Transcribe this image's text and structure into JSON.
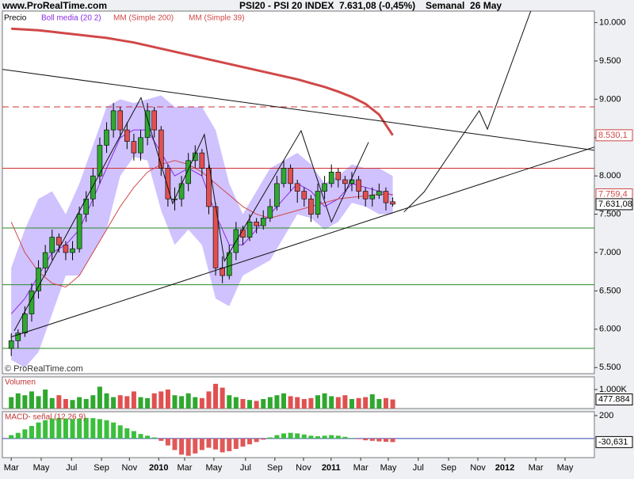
{
  "chart_data": [
    {
      "type": "candlestick",
      "site": "www.ProRealTime.com",
      "title": "PSI20 - PSI 20 INDEX",
      "quote": "7.631,08 (-0,45%)",
      "period": "Semanal  26 May",
      "watermark": "© ProRealTime.com",
      "xlim": [
        -2.6,
        171.2
      ],
      "ylim": [
        5.42,
        10.15
      ],
      "yticks": [
        {
          "value": 10,
          "label": "10.000"
        },
        {
          "value": 9.5,
          "label": "9.500"
        },
        {
          "value": 9,
          "label": "9.000"
        },
        {
          "value": 8.5,
          "label": "8.500"
        },
        {
          "value": 8,
          "label": "8.000"
        },
        {
          "value": 7.5,
          "label": "7.500"
        },
        {
          "value": 7,
          "label": "7.000"
        },
        {
          "value": 6.5,
          "label": "6.500"
        },
        {
          "value": 6,
          "label": "6.000"
        },
        {
          "value": 5.5,
          "label": "5.500"
        }
      ],
      "candles": {
        "name": "Precio",
        "color": "#000000",
        "up_color": "#2fa82f",
        "down_color": "#e05050",
        "last_label": "7.631,08",
        "x": [
          0,
          2,
          4,
          6,
          8,
          10,
          12,
          14,
          16,
          18,
          20,
          22,
          24,
          26,
          28,
          30,
          32,
          34,
          36,
          38,
          40,
          42,
          44,
          46,
          48,
          50,
          52,
          54,
          56,
          58,
          60,
          62,
          64,
          66,
          68,
          70,
          72,
          74,
          76,
          78,
          80,
          82,
          84,
          86,
          88,
          90,
          92,
          94,
          96,
          98,
          100,
          102,
          104,
          106,
          108,
          110,
          112
        ],
        "open": [
          5.75,
          5.85,
          5.95,
          6.2,
          6.5,
          6.8,
          7.0,
          7.2,
          7.1,
          7.0,
          7.05,
          7.5,
          7.7,
          8.0,
          8.4,
          8.6,
          8.85,
          8.6,
          8.45,
          8.3,
          8.5,
          8.85,
          8.6,
          8.1,
          7.7,
          7.7,
          7.9,
          8.2,
          8.3,
          8.1,
          7.6,
          6.8,
          6.7,
          7.0,
          7.3,
          7.2,
          7.4,
          7.35,
          7.45,
          7.6,
          7.9,
          8.1,
          7.9,
          7.8,
          7.7,
          7.5,
          7.8,
          7.9,
          8.05,
          7.95,
          7.9,
          7.95,
          7.8,
          7.7,
          7.75,
          7.8,
          7.663
        ],
        "high": [
          5.95,
          6.0,
          6.3,
          6.6,
          6.9,
          7.1,
          7.3,
          7.25,
          7.15,
          7.15,
          7.6,
          7.8,
          8.1,
          8.5,
          8.7,
          8.95,
          8.9,
          8.7,
          8.55,
          8.6,
          8.95,
          8.9,
          8.65,
          8.15,
          7.85,
          8.0,
          8.3,
          8.4,
          8.35,
          8.15,
          7.65,
          6.95,
          7.1,
          7.4,
          7.35,
          7.5,
          7.45,
          7.55,
          7.7,
          8.0,
          8.2,
          8.15,
          7.95,
          7.85,
          7.75,
          7.9,
          8.0,
          8.15,
          8.1,
          8.0,
          8.05,
          8.0,
          7.85,
          7.85,
          7.9,
          7.85,
          7.72
        ],
        "low": [
          5.65,
          5.75,
          5.9,
          6.1,
          6.4,
          6.7,
          6.9,
          7.0,
          6.9,
          6.9,
          7.0,
          7.4,
          7.6,
          7.9,
          8.3,
          8.5,
          8.5,
          8.35,
          8.2,
          8.2,
          8.4,
          8.5,
          8.0,
          7.6,
          7.55,
          7.6,
          7.8,
          8.1,
          8.0,
          7.5,
          6.7,
          6.6,
          6.65,
          6.9,
          7.1,
          7.15,
          7.25,
          7.3,
          7.4,
          7.55,
          7.85,
          7.8,
          7.65,
          7.6,
          7.4,
          7.45,
          7.7,
          7.85,
          7.85,
          7.8,
          7.8,
          7.7,
          7.6,
          7.6,
          7.7,
          7.55,
          7.6
        ],
        "close": [
          5.85,
          5.95,
          6.2,
          6.5,
          6.8,
          7.0,
          7.2,
          7.1,
          7.0,
          7.05,
          7.5,
          7.7,
          8.0,
          8.4,
          8.6,
          8.85,
          8.6,
          8.45,
          8.3,
          8.5,
          8.85,
          8.6,
          8.1,
          7.7,
          7.7,
          7.9,
          8.2,
          8.3,
          8.1,
          7.6,
          6.8,
          6.7,
          7.0,
          7.3,
          7.2,
          7.4,
          7.35,
          7.45,
          7.6,
          7.9,
          8.1,
          7.9,
          7.8,
          7.7,
          7.5,
          7.8,
          7.9,
          8.05,
          7.95,
          7.9,
          7.95,
          7.8,
          7.7,
          7.75,
          7.8,
          7.65,
          7.631
        ]
      },
      "ma_x": [
        0,
        4,
        8,
        12,
        16,
        20,
        24,
        28,
        32,
        36,
        40,
        44,
        48,
        52,
        56,
        60,
        64,
        68,
        72,
        76,
        80,
        84,
        88,
        92,
        96,
        100,
        104,
        108,
        112
      ],
      "series": [
        {
          "name": "Boll media (20 2)",
          "color": "#8a2be2",
          "band_color": "#cfc2ff",
          "values": [
            6.2,
            6.4,
            6.7,
            7.0,
            7.1,
            7.3,
            7.7,
            8.1,
            8.5,
            8.6,
            8.6,
            8.3,
            8.0,
            8.1,
            8.0,
            7.5,
            7.1,
            7.1,
            7.3,
            7.5,
            7.7,
            7.9,
            7.8,
            7.6,
            7.7,
            7.9,
            7.85,
            7.8,
            7.75
          ],
          "upper": [
            6.8,
            7.3,
            7.7,
            7.8,
            7.5,
            7.9,
            8.4,
            8.9,
            9.0,
            8.95,
            9.0,
            9.05,
            8.9,
            8.9,
            8.9,
            8.6,
            7.9,
            7.5,
            7.8,
            8.1,
            8.2,
            8.3,
            8.15,
            7.9,
            8.0,
            8.15,
            8.1,
            8.1,
            8.0
          ],
          "lower": [
            5.6,
            5.5,
            5.7,
            6.2,
            6.7,
            6.7,
            7.0,
            7.3,
            8.0,
            8.25,
            8.2,
            7.55,
            7.1,
            7.3,
            7.1,
            6.4,
            6.3,
            6.7,
            6.8,
            6.9,
            7.2,
            7.5,
            7.45,
            7.3,
            7.4,
            7.65,
            7.6,
            7.5,
            7.5
          ]
        },
        {
          "name": "MM (Simple 200)",
          "color": "#d04848",
          "width": 3,
          "last_label": "8.530,1",
          "values": [
            9.92,
            9.91,
            9.9,
            9.88,
            9.86,
            9.84,
            9.82,
            9.8,
            9.77,
            9.74,
            9.7,
            9.66,
            9.62,
            9.58,
            9.54,
            9.5,
            9.46,
            9.42,
            9.38,
            9.34,
            9.3,
            9.26,
            9.21,
            9.16,
            9.1,
            9.03,
            8.94,
            8.8,
            8.5301
          ]
        },
        {
          "name": "MM (Simple 39)",
          "color": "#d04848",
          "width": 1,
          "last_label": "7.759,4",
          "values": [
            7.4,
            7.0,
            6.75,
            6.6,
            6.55,
            6.7,
            7.0,
            7.3,
            7.6,
            7.85,
            8.05,
            8.15,
            8.2,
            8.15,
            8.05,
            7.9,
            7.75,
            7.6,
            7.5,
            7.45,
            7.5,
            7.55,
            7.6,
            7.65,
            7.7,
            7.72,
            7.74,
            7.76,
            7.7594
          ]
        }
      ],
      "levels": [
        {
          "value": 8.9,
          "color": "#d03030",
          "dashed": true
        },
        {
          "value": 8.1,
          "color": "#d03030",
          "dashed": false
        },
        {
          "value": 7.32,
          "color": "#2a8a2a",
          "dashed": false
        },
        {
          "value": 6.58,
          "color": "#2a8a2a",
          "dashed": false
        },
        {
          "value": 5.75,
          "color": "#2a8a2a",
          "dashed": false
        }
      ],
      "trendlines": [
        {
          "x": [
            -2.6,
            171.2
          ],
          "y": [
            9.39,
            8.335
          ]
        },
        {
          "x": [
            0,
            171.2
          ],
          "y": [
            5.9,
            8.376
          ]
        },
        {
          "x": [
            0.9,
            38.1,
            47.4,
            56.7,
            62.6,
            85.1,
            94,
            104.9
          ],
          "y": [
            5.98,
            9.02,
            7.64,
            8.54,
            6.89,
            8.59,
            7.4,
            8.44
          ]
        },
        {
          "x": [
            115.3,
            121.2,
            137.4,
            139.8,
            152.6
          ],
          "y": [
            7.53,
            7.79,
            8.85,
            8.61,
            10.16
          ]
        }
      ]
    },
    {
      "type": "bar",
      "title": "Volumen",
      "xlim": [
        -2.6,
        171.2
      ],
      "ylim": [
        0,
        1667000
      ],
      "yticks": [
        {
          "value": 1000000,
          "label": "1.000K"
        }
      ],
      "last_label": "477.884",
      "values": [
        600000,
        800000,
        700000,
        900000,
        650000,
        1000000,
        550000,
        700000,
        500000,
        450000,
        600000,
        500000,
        700000,
        1150000,
        800000,
        600000,
        700000,
        650000,
        900000,
        600000,
        550000,
        800000,
        900000,
        1000000,
        700000,
        650000,
        800000,
        600000,
        550000,
        900000,
        1300000,
        1100000,
        700000,
        600000,
        500000,
        450000,
        400000,
        500000,
        600000,
        700000,
        800000,
        650000,
        600000,
        500000,
        550000,
        700000,
        800000,
        650000,
        600000,
        700000,
        500000,
        550000,
        600000,
        750000,
        500000,
        550000,
        477884
      ]
    },
    {
      "type": "bar",
      "title": "MACD- señal (12 26 9)",
      "xlim": [
        -2.6,
        171.2
      ],
      "ylim": [
        -166,
        234
      ],
      "yticks": [
        200
      ],
      "last_label": "-30,631",
      "pos_color": "#3cbf3c",
      "neg_color": "#e05858",
      "zero_color": "#3344aa",
      "values": [
        30,
        50,
        80,
        110,
        140,
        160,
        175,
        180,
        175,
        170,
        175,
        180,
        178,
        170,
        160,
        140,
        115,
        90,
        65,
        40,
        25,
        10,
        -20,
        -60,
        -100,
        -140,
        -150,
        -130,
        -100,
        -80,
        -95,
        -120,
        -110,
        -90,
        -70,
        -50,
        -30,
        -10,
        10,
        30,
        45,
        50,
        45,
        35,
        25,
        20,
        25,
        30,
        25,
        15,
        5,
        -5,
        -15,
        -20,
        -25,
        -28,
        -30.631
      ],
      "xticks": [
        {
          "value": 0,
          "label": "Mar"
        },
        {
          "value": 8.8,
          "label": "May"
        },
        {
          "value": 17.7,
          "label": "Jul"
        },
        {
          "value": 26.5,
          "label": "Sep"
        },
        {
          "value": 34.7,
          "label": "Nov"
        },
        {
          "value": 43.3,
          "label": "2010"
        },
        {
          "value": 50.9,
          "label": "Mar"
        },
        {
          "value": 59.5,
          "label": "May"
        },
        {
          "value": 68.8,
          "label": "Jul"
        },
        {
          "value": 77.4,
          "label": "Sep"
        },
        {
          "value": 85.8,
          "label": "Nov"
        },
        {
          "value": 93.9,
          "label": "2011"
        },
        {
          "value": 102.6,
          "label": "Mar"
        },
        {
          "value": 110.7,
          "label": "May"
        },
        {
          "value": 119.5,
          "label": "Jul"
        },
        {
          "value": 128.4,
          "label": "Sep"
        },
        {
          "value": 137,
          "label": "Nov"
        },
        {
          "value": 144.9,
          "label": "2012"
        },
        {
          "value": 154,
          "label": "Mar"
        },
        {
          "value": 162.6,
          "label": "May"
        }
      ]
    }
  ]
}
